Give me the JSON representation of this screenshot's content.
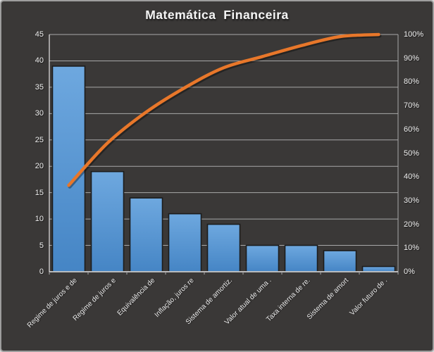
{
  "title": "Matemática  Financeira",
  "chart_data": {
    "type": "bar",
    "subtype": "pareto-combo",
    "title": "Matemática  Financeira",
    "categories": [
      "Regime de juros e de",
      "Regime de juros e",
      "Equivalência de",
      "Inflação, juros re",
      "Sistema de amortiz.",
      "Valor atual de uma .",
      "Taxa interna de re.",
      "Sistema de amort",
      "Valor futuro de ."
    ],
    "series": [
      {
        "name": "frequency-bars",
        "type": "bar",
        "axis": "left",
        "values": [
          39,
          19,
          14,
          11,
          9,
          5,
          5,
          4,
          1
        ]
      },
      {
        "name": "cumulative-percent-line",
        "type": "line",
        "axis": "right",
        "values": [
          36.4,
          54.2,
          67.3,
          77.6,
          86.0,
          90.7,
          95.3,
          99.1,
          100
        ]
      }
    ],
    "left_axis": {
      "min": 0,
      "max": 45,
      "step": 5,
      "tick_labels": [
        "0",
        "5",
        "10",
        "15",
        "20",
        "25",
        "30",
        "35",
        "40",
        "45"
      ]
    },
    "right_axis": {
      "min": 0,
      "max": 100,
      "step": 10,
      "tick_labels": [
        "0%",
        "10%",
        "20%",
        "30%",
        "40%",
        "50%",
        "60%",
        "70%",
        "80%",
        "90%",
        "100%"
      ]
    },
    "grid": "horizontal-major",
    "legend": "none"
  },
  "colors": {
    "background": "#3a3837",
    "frame_border": "#9e9e9e",
    "bar_fill_top": "#6ea8df",
    "bar_fill_bottom": "#4585c5",
    "bar_stroke": "#1c1c1c",
    "line_stroke": "#e8772a",
    "gridline": "#a8a8a8",
    "axis_line": "#e6e6e6",
    "text": "#efefef"
  }
}
